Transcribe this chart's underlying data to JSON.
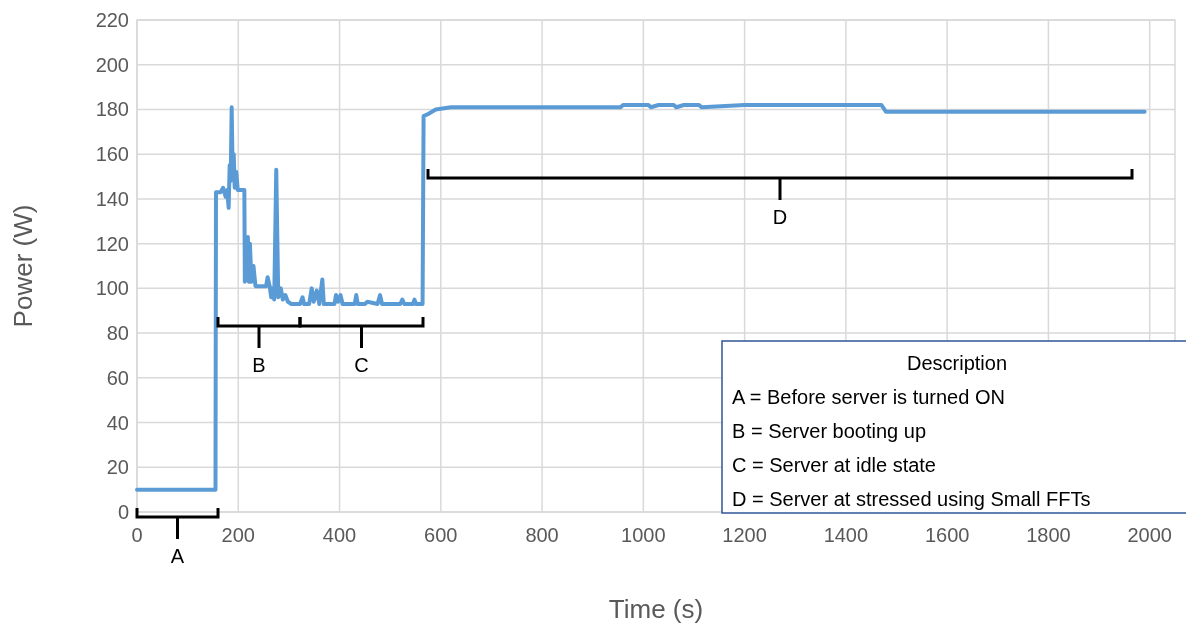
{
  "chart_data": {
    "type": "line",
    "xlabel": "Time (s)",
    "ylabel": "Power (W)",
    "xlim": [
      0,
      2050
    ],
    "xticks": [
      0,
      200,
      400,
      600,
      800,
      1000,
      1200,
      1400,
      1600,
      1800,
      2000
    ],
    "ylim": [
      0,
      220
    ],
    "yticks": [
      0,
      20,
      40,
      60,
      80,
      100,
      120,
      140,
      160,
      180,
      200,
      220
    ],
    "grid": true,
    "marker": "none",
    "line_style": "solid",
    "series": [
      {
        "color": "#5b9bd5",
        "x": [
          0,
          155,
          156,
          165,
          170,
          175,
          178,
          181,
          183,
          185,
          187,
          189,
          191,
          193,
          196,
          199,
          212,
          213,
          216,
          219,
          221,
          223,
          226,
          230,
          234,
          255,
          258,
          262,
          265,
          268,
          271,
          275,
          279,
          284,
          288,
          293,
          298,
          305,
          322,
          327,
          330,
          340,
          345,
          349,
          355,
          360,
          366,
          369,
          390,
          393,
          397,
          402,
          406,
          430,
          433,
          436,
          450,
          455,
          475,
          480,
          484,
          520,
          524,
          528,
          545,
          548,
          551,
          564,
          566,
          575,
          590,
          620,
          955,
          960,
          1010,
          1015,
          1030,
          1060,
          1065,
          1080,
          1110,
          1115,
          1200,
          1470,
          1479,
          1990
        ],
        "values": [
          10,
          10,
          143,
          143,
          145,
          141,
          144,
          136,
          155,
          148,
          181,
          150,
          160,
          145,
          152,
          144,
          144,
          103,
          105,
          123,
          103,
          120,
          103,
          110,
          101,
          101,
          105,
          101,
          96,
          100,
          95,
          153,
          96,
          100,
          95,
          97,
          94,
          93,
          93,
          96,
          93,
          93,
          100,
          94,
          99,
          93,
          104,
          93,
          93,
          97,
          94,
          97,
          93,
          93,
          97,
          93,
          93,
          94,
          93,
          97,
          93,
          93,
          95,
          93,
          93,
          95,
          93,
          93,
          177,
          178,
          180,
          181,
          181,
          182,
          182,
          181,
          182,
          182,
          181,
          182,
          182,
          181,
          182,
          182,
          179,
          179
        ]
      }
    ],
    "annotations": [
      "A",
      "B",
      "C",
      "D",
      "Description",
      "A  = Before server is turned ON",
      "B  = Server booting up",
      "C  = Server at idle state",
      "D  = Server at stressed using Small FFTs"
    ]
  }
}
